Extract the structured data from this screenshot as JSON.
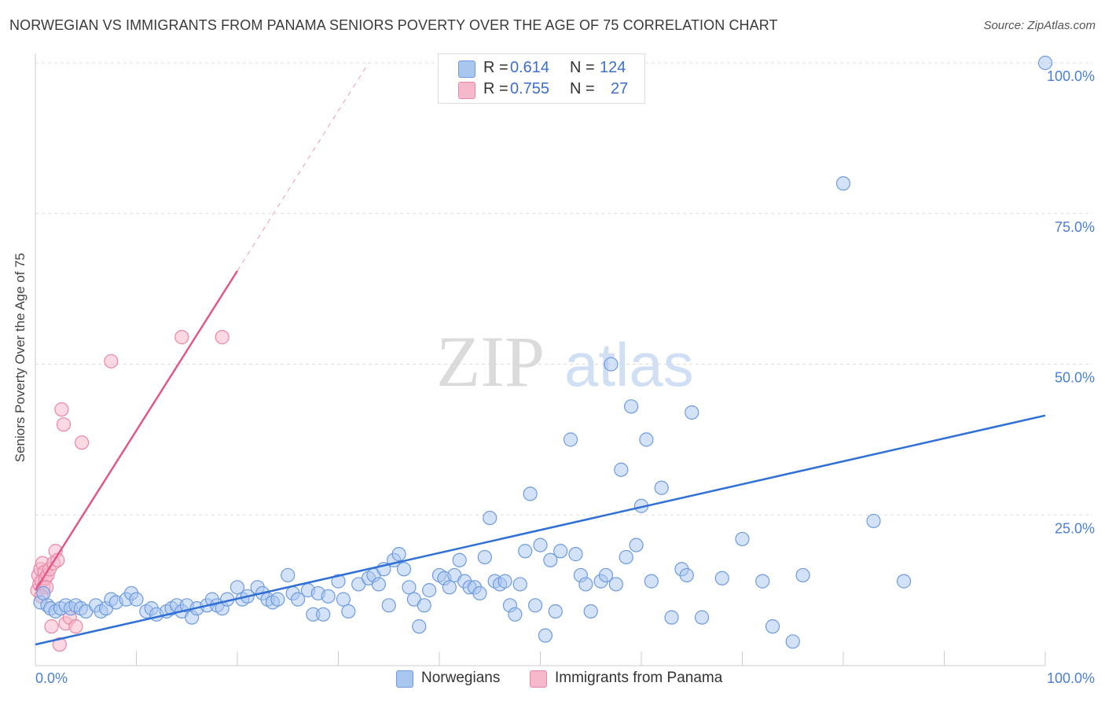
{
  "title": "NORWEGIAN VS IMMIGRANTS FROM PANAMA SENIORS POVERTY OVER THE AGE OF 75 CORRELATION CHART",
  "source": "Source: ZipAtlas.com",
  "watermark": {
    "zip": "ZIP",
    "atlas": "atlas"
  },
  "colors": {
    "blue_fill": "#a9c6ef",
    "blue_stroke": "#6d9be0",
    "blue_line": "#2f6fd6",
    "pink_fill": "#f6b9cc",
    "pink_stroke": "#ea86a6",
    "pink_line": "#e0588a",
    "grid": "#dddddd",
    "tick_label": "#4a7fd4"
  },
  "legend_top": [
    {
      "r_label": "R =",
      "r_value": "0.614",
      "n_label": "N =",
      "n_value": "124",
      "color": "#a9c6ef"
    },
    {
      "r_label": "R =",
      "r_value": "0.755",
      "n_label": "N =",
      "n_value": "27",
      "color": "#f6b9cc"
    }
  ],
  "legend_bottom": [
    {
      "label": "Norwegians",
      "color": "#a9c6ef"
    },
    {
      "label": "Immigrants from Panama",
      "color": "#f6b9cc"
    }
  ],
  "chart_data": {
    "type": "scatter",
    "title": "NORWEGIAN VS IMMIGRANTS FROM PANAMA SENIORS POVERTY OVER THE AGE OF 75 CORRELATION CHART",
    "xlabel": "",
    "ylabel": "Seniors Poverty Over the Age of 75",
    "xlim": [
      0,
      100
    ],
    "ylim": [
      0,
      100
    ],
    "x_tick_labels": [
      "0.0%",
      "100.0%"
    ],
    "y_tick_labels": [
      "25.0%",
      "50.0%",
      "75.0%",
      "100.0%"
    ],
    "y_ticks": [
      25,
      50,
      75,
      100
    ],
    "grid": true,
    "legend_position": "top-center",
    "series": [
      {
        "name": "Norwegians",
        "r": 0.614,
        "n": 124,
        "trend": {
          "x": [
            0,
            100
          ],
          "y": [
            3.5,
            41.5
          ],
          "dashed_extension": false
        },
        "points": [
          [
            0.5,
            10.5
          ],
          [
            0.8,
            12
          ],
          [
            1.2,
            10
          ],
          [
            1.5,
            9.5
          ],
          [
            2.0,
            9
          ],
          [
            2.5,
            9.5
          ],
          [
            3,
            10
          ],
          [
            3.5,
            9.5
          ],
          [
            4,
            10
          ],
          [
            4.5,
            9.5
          ],
          [
            5,
            9
          ],
          [
            6,
            10
          ],
          [
            6.5,
            9
          ],
          [
            7,
            9.5
          ],
          [
            7.5,
            11
          ],
          [
            8,
            10.5
          ],
          [
            9,
            11
          ],
          [
            9.5,
            12
          ],
          [
            10,
            11
          ],
          [
            11,
            9
          ],
          [
            11.5,
            9.5
          ],
          [
            12,
            8.5
          ],
          [
            13,
            9
          ],
          [
            13.5,
            9.5
          ],
          [
            14,
            10
          ],
          [
            14.5,
            9
          ],
          [
            15,
            10
          ],
          [
            15.5,
            8
          ],
          [
            16,
            9.5
          ],
          [
            17,
            10
          ],
          [
            17.5,
            11
          ],
          [
            18,
            10
          ],
          [
            18.5,
            9.5
          ],
          [
            19,
            11
          ],
          [
            20,
            13
          ],
          [
            20.5,
            11
          ],
          [
            21,
            11.5
          ],
          [
            22,
            13
          ],
          [
            22.5,
            12
          ],
          [
            23,
            11
          ],
          [
            23.5,
            10.5
          ],
          [
            24,
            11
          ],
          [
            25,
            15
          ],
          [
            25.5,
            12
          ],
          [
            26,
            11
          ],
          [
            27,
            12.5
          ],
          [
            27.5,
            8.5
          ],
          [
            28,
            12
          ],
          [
            28.5,
            8.5
          ],
          [
            29,
            11.5
          ],
          [
            30,
            14
          ],
          [
            30.5,
            11
          ],
          [
            31,
            9
          ],
          [
            32,
            13.5
          ],
          [
            33,
            14.5
          ],
          [
            33.5,
            15
          ],
          [
            34,
            13.5
          ],
          [
            34.5,
            16
          ],
          [
            35,
            10
          ],
          [
            35.5,
            17.5
          ],
          [
            36,
            18.5
          ],
          [
            36.5,
            16
          ],
          [
            37,
            13
          ],
          [
            37.5,
            11
          ],
          [
            38,
            6.5
          ],
          [
            38.5,
            10
          ],
          [
            39,
            12.5
          ],
          [
            40,
            15
          ],
          [
            40.5,
            14.5
          ],
          [
            41,
            13
          ],
          [
            41.5,
            15
          ],
          [
            42,
            17.5
          ],
          [
            42.5,
            14
          ],
          [
            43,
            13
          ],
          [
            43.5,
            13
          ],
          [
            44,
            12
          ],
          [
            44.5,
            18
          ],
          [
            45,
            24.5
          ],
          [
            45.5,
            14
          ],
          [
            46,
            13.5
          ],
          [
            46.5,
            14
          ],
          [
            47,
            10
          ],
          [
            47.5,
            8.5
          ],
          [
            48,
            13.5
          ],
          [
            48.5,
            19
          ],
          [
            49,
            28.5
          ],
          [
            49.5,
            10
          ],
          [
            50,
            20
          ],
          [
            50.5,
            5
          ],
          [
            51,
            17.5
          ],
          [
            51.5,
            9
          ],
          [
            52,
            19
          ],
          [
            53,
            37.5
          ],
          [
            53.5,
            18.5
          ],
          [
            54,
            15
          ],
          [
            54.5,
            13.5
          ],
          [
            55,
            9
          ],
          [
            56,
            14
          ],
          [
            56.5,
            15
          ],
          [
            57,
            50
          ],
          [
            57.5,
            13.5
          ],
          [
            58,
            32.5
          ],
          [
            58.5,
            18
          ],
          [
            59,
            43
          ],
          [
            59.5,
            20
          ],
          [
            60,
            26.5
          ],
          [
            60.5,
            37.5
          ],
          [
            61,
            14
          ],
          [
            62,
            29.5
          ],
          [
            63,
            8
          ],
          [
            64,
            16
          ],
          [
            64.5,
            15
          ],
          [
            65,
            42
          ],
          [
            66,
            8
          ],
          [
            68,
            14.5
          ],
          [
            70,
            21
          ],
          [
            72,
            14
          ],
          [
            73,
            6.5
          ],
          [
            75,
            4
          ],
          [
            76,
            15
          ],
          [
            80,
            80
          ],
          [
            83,
            24
          ],
          [
            86,
            14
          ],
          [
            100,
            100
          ]
        ]
      },
      {
        "name": "Immigrants from Panama",
        "r": 0.755,
        "n": 27,
        "trend": {
          "x": [
            0,
            20,
            33
          ],
          "y": [
            12.5,
            65.5,
            100
          ],
          "dashed_extension": true
        },
        "points": [
          [
            0.2,
            12.5
          ],
          [
            0.3,
            15
          ],
          [
            0.4,
            13.5
          ],
          [
            0.5,
            16
          ],
          [
            0.6,
            14
          ],
          [
            0.7,
            17
          ],
          [
            0.8,
            13
          ],
          [
            0.9,
            15.5
          ],
          [
            1.0,
            14.5
          ],
          [
            1.2,
            15
          ],
          [
            1.4,
            16
          ],
          [
            1.6,
            6.5
          ],
          [
            1.8,
            17
          ],
          [
            2.0,
            19
          ],
          [
            2.2,
            17.5
          ],
          [
            2.4,
            3.5
          ],
          [
            2.6,
            42.5
          ],
          [
            2.8,
            40
          ],
          [
            3.0,
            7
          ],
          [
            3.4,
            8
          ],
          [
            4.0,
            6.5
          ],
          [
            4.6,
            37
          ],
          [
            7.5,
            50.5
          ],
          [
            14.5,
            54.5
          ],
          [
            18.5,
            54.5
          ],
          [
            1.1,
            13
          ],
          [
            0.6,
            11.5
          ]
        ]
      }
    ]
  }
}
